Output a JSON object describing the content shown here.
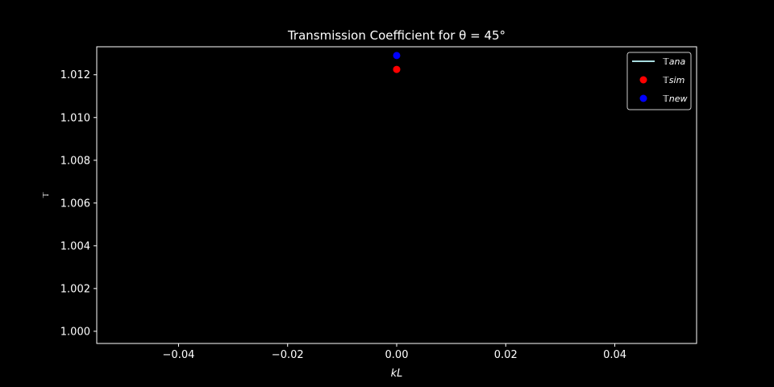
{
  "chart_data": {
    "type": "scatter",
    "title": "Transmission Coefficient for θ = 45°",
    "xlabel": "kL",
    "ylabel": "𝕋",
    "xlim": [
      -0.055,
      0.055
    ],
    "ylim": [
      0.99943,
      1.01331
    ],
    "x_ticks": [
      -0.04,
      -0.02,
      0.0,
      0.02,
      0.04
    ],
    "x_tick_labels": [
      "−0.04",
      "−0.02",
      "0.00",
      "0.02",
      "0.04"
    ],
    "y_ticks": [
      1.0,
      1.002,
      1.004,
      1.006,
      1.008,
      1.01,
      1.012
    ],
    "y_tick_labels": [
      "1.000",
      "1.002",
      "1.004",
      "1.006",
      "1.008",
      "1.010",
      "1.012"
    ],
    "grid": false,
    "legend_position": "top-right",
    "series": [
      {
        "name": "𝕋ana",
        "style": "line",
        "color": "#a8dde0",
        "points": []
      },
      {
        "name": "𝕋sim",
        "style": "marker",
        "color": "#ff0000",
        "points": [
          [
            0.0,
            1.01225
          ]
        ]
      },
      {
        "name": "𝕋new",
        "style": "marker",
        "color": "#0000ff",
        "points": [
          [
            0.0,
            1.0129
          ]
        ]
      }
    ]
  }
}
